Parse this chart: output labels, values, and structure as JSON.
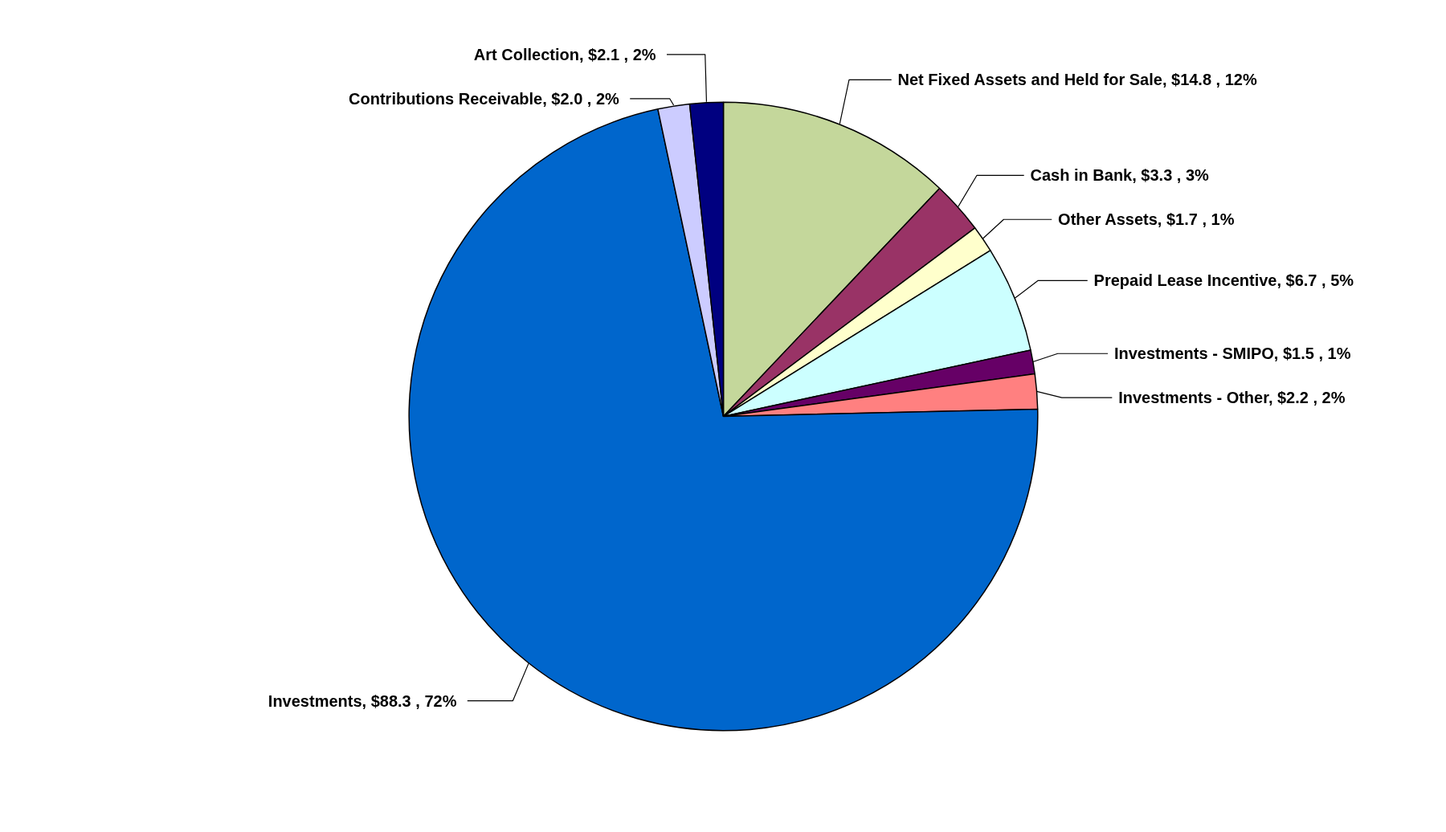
{
  "chart_data": {
    "type": "pie",
    "categories": [
      "Net Fixed Assets and Held for Sale",
      "Cash in Bank",
      "Other Assets",
      "Prepaid Lease Incentive",
      "Investments - SMIPO",
      "Investments - Other",
      "Investments",
      "Contributions Receivable",
      "Art Collection"
    ],
    "values": [
      14.8,
      3.3,
      1.7,
      6.7,
      1.5,
      2.2,
      88.3,
      2.0,
      2.1
    ],
    "value_labels": [
      "$14.8 , 12%",
      "$3.3 , 3%",
      "$1.7 , 1%",
      "$6.7 , 5%",
      "$1.5 , 1%",
      "$2.2 , 2%",
      "$88.3 , 72%",
      "$2.0 , 2%",
      "$2.1 , 2%"
    ],
    "colors": [
      "#c4d79b",
      "#993366",
      "#ffffcc",
      "#ccffff",
      "#660066",
      "#ff8080",
      "#0066cc",
      "#ccccff",
      "#000080"
    ],
    "legend": false
  }
}
